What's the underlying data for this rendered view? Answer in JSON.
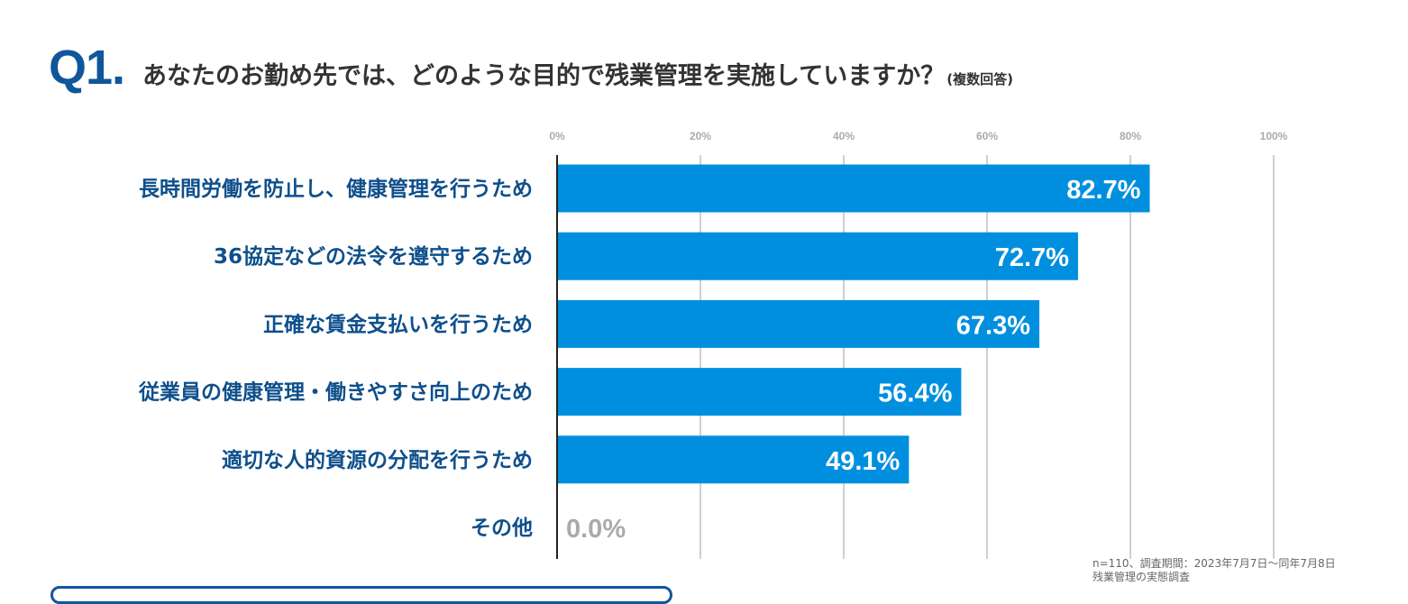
{
  "question": {
    "number": "Q1.",
    "text": "あなたのお勤め先では、どのような目的で残業管理を実施していますか？",
    "note": "(複数回答)"
  },
  "colors": {
    "bar": "#008fdf",
    "category_label": "#0e4f8b",
    "axis_label": "#aaaaaa",
    "zero_label": "#aaaaaa",
    "gridline": "#cfcfcf"
  },
  "chart_data": {
    "type": "bar",
    "orientation": "horizontal",
    "categories": [
      "長時間労働を防止し、健康管理を行うため",
      "36協定などの法令を遵守するため",
      "正確な賃金支払いを行うため",
      "従業員の健康管理・働きやすさ向上のため",
      "適切な人的資源の分配を行うため",
      "その他"
    ],
    "values": [
      82.7,
      72.7,
      67.3,
      56.4,
      49.1,
      0.0
    ],
    "value_labels": [
      "82.7%",
      "72.7%",
      "67.3%",
      "56.4%",
      "49.1%",
      "0.0%"
    ],
    "xlim": [
      0,
      100
    ],
    "xticks": [
      0,
      20,
      40,
      60,
      80,
      100
    ],
    "xtick_labels": [
      "0%",
      "20%",
      "40%",
      "60%",
      "80%",
      "100%"
    ],
    "grid": true,
    "title": "",
    "xlabel": "",
    "ylabel": ""
  },
  "footnote": {
    "line1": "n=110、調査期間：2023年7月7日～同年7月8日",
    "line2": "残業管理の実態調査"
  }
}
